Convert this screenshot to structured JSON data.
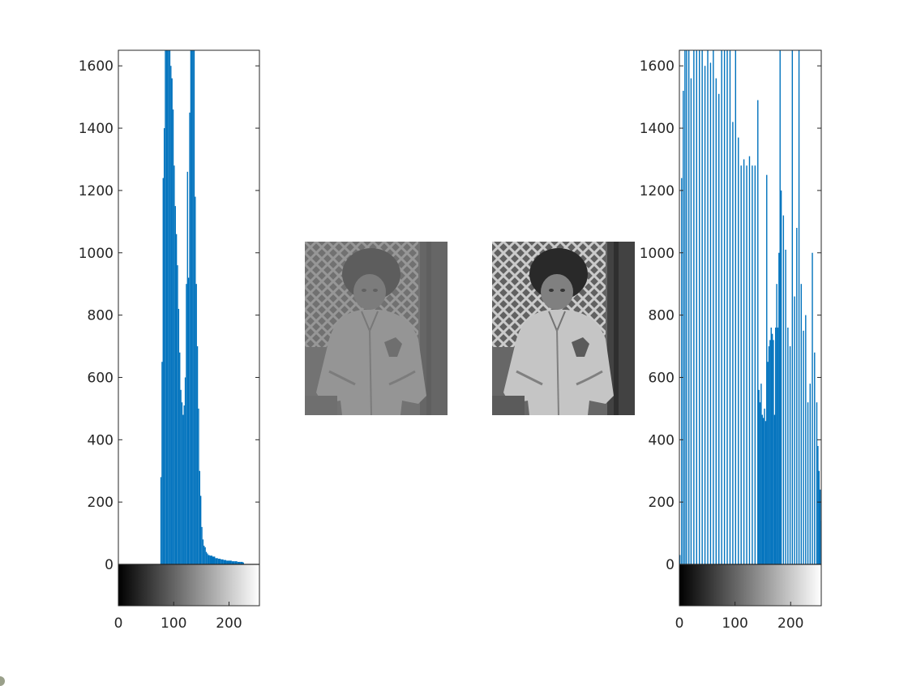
{
  "colors": {
    "bar": "#0072bd",
    "axis": "#262626",
    "background": "#ffffff"
  },
  "chart_data": [
    {
      "type": "bar",
      "title": "",
      "xlabel": "",
      "ylabel": "",
      "xlim": [
        0,
        255
      ],
      "ylim": [
        -140,
        1650
      ],
      "grid": false,
      "yticks": [
        "0",
        "200",
        "400",
        "600",
        "800",
        "1000",
        "1200",
        "1400",
        "1600"
      ],
      "xticks": [
        "0",
        "100",
        "200"
      ],
      "colorbar": "gray 0-255",
      "x": [
        76,
        78,
        80,
        82,
        84,
        86,
        88,
        90,
        92,
        94,
        96,
        98,
        100,
        102,
        104,
        106,
        108,
        110,
        112,
        114,
        116,
        118,
        120,
        122,
        124,
        126,
        128,
        130,
        132,
        134,
        136,
        138,
        140,
        142,
        144,
        146,
        148,
        150,
        152,
        154,
        156,
        158,
        160,
        162,
        165,
        170,
        175,
        180,
        185,
        190,
        195,
        200,
        205,
        210,
        215,
        220,
        225
      ],
      "values": [
        280,
        650,
        1240,
        1400,
        1660,
        1660,
        1660,
        1660,
        1660,
        1600,
        1560,
        1460,
        1280,
        1150,
        1060,
        960,
        820,
        680,
        560,
        520,
        480,
        510,
        600,
        900,
        1260,
        920,
        1450,
        1660,
        1660,
        1660,
        1660,
        1180,
        900,
        700,
        500,
        300,
        220,
        120,
        80,
        60,
        55,
        40,
        35,
        30,
        28,
        25,
        20,
        18,
        16,
        14,
        12,
        12,
        10,
        10,
        8,
        8,
        6
      ]
    },
    {
      "type": "image",
      "description_label": ""
    },
    {
      "type": "image",
      "description_label": ""
    },
    {
      "type": "bar",
      "title": "",
      "xlabel": "",
      "ylabel": "",
      "xlim": [
        0,
        255
      ],
      "ylim": [
        -140,
        1650
      ],
      "grid": false,
      "yticks": [
        "0",
        "200",
        "400",
        "600",
        "800",
        "1000",
        "1200",
        "1400",
        "1600"
      ],
      "xticks": [
        "0",
        "100",
        "200"
      ],
      "colorbar": "gray 0-255",
      "x": [
        0,
        3,
        6,
        9,
        12,
        16,
        20,
        25,
        30,
        35,
        40,
        45,
        50,
        55,
        60,
        65,
        70,
        75,
        80,
        85,
        90,
        95,
        100,
        105,
        110,
        115,
        120,
        125,
        130,
        135,
        140,
        142,
        144,
        146,
        148,
        150,
        152,
        154,
        156,
        158,
        160,
        162,
        164,
        166,
        168,
        170,
        172,
        174,
        176,
        178,
        180,
        182,
        186,
        190,
        194,
        198,
        202,
        206,
        210,
        214,
        218,
        222,
        226,
        230,
        234,
        238,
        242,
        246,
        248,
        250,
        252,
        254
      ],
      "values": [
        30,
        1240,
        1520,
        1660,
        1660,
        1660,
        1560,
        1660,
        1660,
        1660,
        1660,
        1600,
        1660,
        1610,
        1660,
        1560,
        1510,
        1660,
        1660,
        1660,
        1660,
        1420,
        1660,
        1370,
        1280,
        1300,
        1280,
        1310,
        1280,
        1280,
        1490,
        560,
        520,
        580,
        480,
        470,
        500,
        460,
        1250,
        650,
        700,
        720,
        760,
        740,
        720,
        480,
        760,
        900,
        760,
        1000,
        1660,
        1200,
        1120,
        1010,
        760,
        700,
        1660,
        860,
        1080,
        1660,
        900,
        750,
        800,
        520,
        580,
        1000,
        680,
        520,
        380,
        300,
        240,
        140
      ]
    }
  ]
}
